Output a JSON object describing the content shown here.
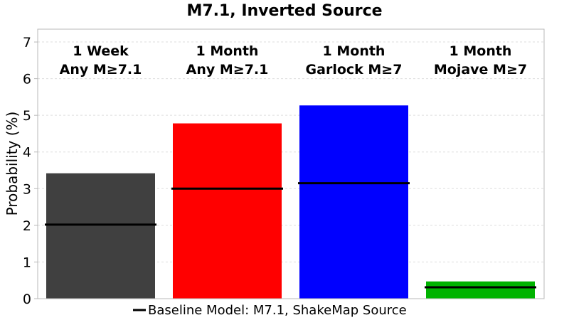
{
  "chart_data": {
    "type": "bar",
    "title": "M7.1, Inverted Source",
    "xlabel": "",
    "ylabel": "Probability (%)",
    "ylim": [
      0,
      7.35
    ],
    "yticks": [
      "0",
      "1",
      "2",
      "3",
      "4",
      "5",
      "6",
      "7"
    ],
    "grid": true,
    "categories": [
      {
        "line1": "1 Week",
        "line2": "Any M≥7.1"
      },
      {
        "line1": "1 Month",
        "line2": "Any M≥7.1"
      },
      {
        "line1": "1 Month",
        "line2": "Garlock M≥7"
      },
      {
        "line1": "1 Month",
        "line2": "Mojave M≥7"
      }
    ],
    "values": [
      3.42,
      4.78,
      5.27,
      0.47
    ],
    "bar_colors": [
      "#404040",
      "#ff0000",
      "#0000ff",
      "#00b300"
    ],
    "baseline": {
      "name": "Baseline Model: M7.1, ShakeMap Source",
      "values": [
        2.02,
        3.0,
        3.15,
        0.31
      ],
      "color": "#000000"
    },
    "legend_position": "bottom-center"
  }
}
